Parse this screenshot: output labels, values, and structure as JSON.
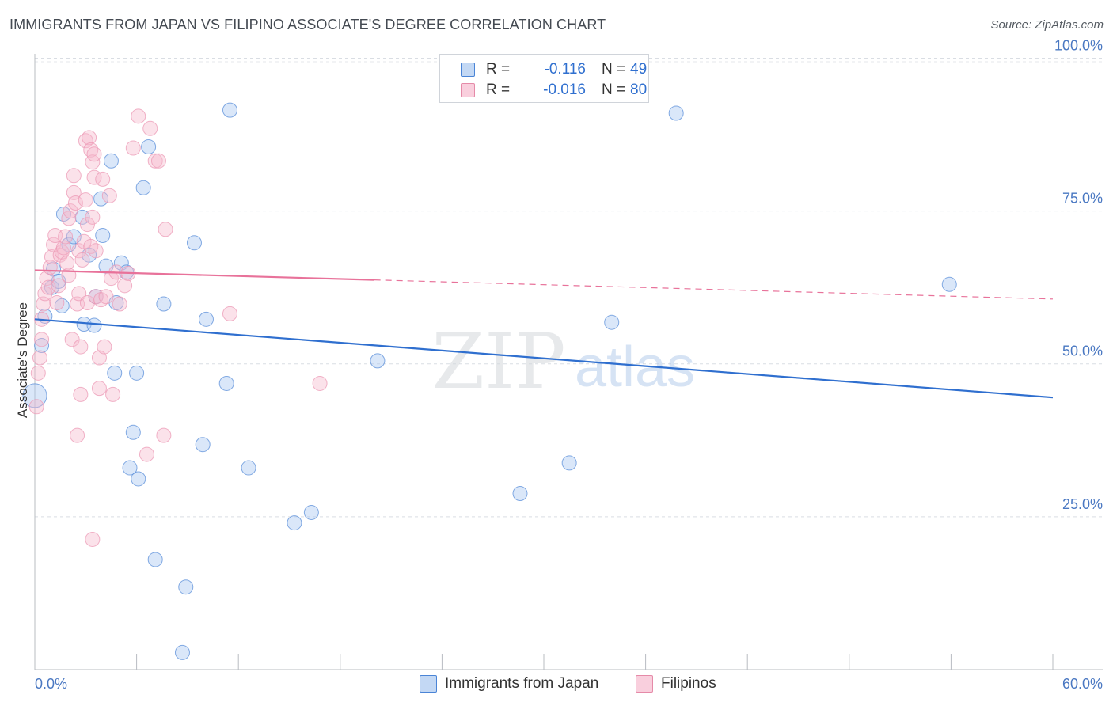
{
  "title": "IMMIGRANTS FROM JAPAN VS FILIPINO ASSOCIATE'S DEGREE CORRELATION CHART",
  "source": "Source: ZipAtlas.com",
  "watermark": {
    "zip": "ZIP",
    "atlas": "atlas"
  },
  "colors": {
    "blue": "#2f6fcf",
    "blue_fill": "#a8c6f0",
    "pink": "#e8729a",
    "pink_fill": "#f6b9cd",
    "grid": "#d9dde3",
    "axis_label": "#4a78c2"
  },
  "legend": {
    "rows": [
      {
        "r_label": "R =",
        "r_value": "-0.116",
        "n_label": "N =",
        "n_value": "49"
      },
      {
        "r_label": "R =",
        "r_value": "-0.016",
        "n_label": "N =",
        "n_value": "80"
      }
    ]
  },
  "bottom_legend": {
    "series_a": "Immigrants from Japan",
    "series_b": "Filipinos"
  },
  "chart_data": {
    "type": "scatter",
    "title": "IMMIGRANTS FROM JAPAN VS FILIPINO ASSOCIATE'S DEGREE CORRELATION CHART",
    "xlabel": "",
    "ylabel": "Associate's Degree",
    "xlim": [
      0,
      60
    ],
    "ylim": [
      0,
      102
    ],
    "x_tick_labels": [
      "0.0%",
      "60.0%"
    ],
    "y_ticks": [
      25,
      50,
      75,
      100
    ],
    "y_tick_labels": [
      "25.0%",
      "50.0%",
      "75.0%",
      "100.0%"
    ],
    "grid": true,
    "series": [
      {
        "name": "Immigrants from Japan",
        "color": "#2f6fcf",
        "r": -0.116,
        "n": 49,
        "trend": {
          "x0": 0,
          "y0": 57.3,
          "x1": 60,
          "y1": 44.5,
          "dashed_from": null
        },
        "points": [
          [
            0.0,
            44.8,
            2
          ],
          [
            0.4,
            53.0,
            1
          ],
          [
            0.6,
            57.8,
            1
          ],
          [
            1.0,
            62.5,
            1
          ],
          [
            1.1,
            65.5,
            1
          ],
          [
            1.4,
            63.5,
            1
          ],
          [
            1.6,
            59.5,
            1
          ],
          [
            2.0,
            69.5,
            1
          ],
          [
            2.3,
            70.8,
            1
          ],
          [
            1.7,
            74.5,
            1
          ],
          [
            2.8,
            74.0,
            1
          ],
          [
            2.9,
            56.5,
            1
          ],
          [
            3.2,
            67.8,
            1
          ],
          [
            3.5,
            56.3,
            1
          ],
          [
            3.6,
            61.0,
            1
          ],
          [
            3.9,
            77.0,
            1
          ],
          [
            4.0,
            71.0,
            1
          ],
          [
            4.2,
            66.0,
            1
          ],
          [
            4.5,
            83.2,
            1
          ],
          [
            4.7,
            48.5,
            1
          ],
          [
            4.8,
            60.0,
            1
          ],
          [
            5.1,
            66.5,
            1
          ],
          [
            5.4,
            65.0,
            1
          ],
          [
            5.8,
            38.8,
            1
          ],
          [
            5.6,
            33.0,
            1
          ],
          [
            6.0,
            48.5,
            1
          ],
          [
            6.1,
            31.2,
            1
          ],
          [
            6.4,
            78.8,
            1
          ],
          [
            6.7,
            85.5,
            1
          ],
          [
            7.1,
            18.0,
            1
          ],
          [
            7.6,
            59.8,
            1
          ],
          [
            8.7,
            2.8,
            1
          ],
          [
            8.9,
            13.5,
            1
          ],
          [
            9.4,
            69.8,
            1
          ],
          [
            9.9,
            36.8,
            1
          ],
          [
            10.1,
            57.3,
            1
          ],
          [
            11.3,
            46.8,
            1
          ],
          [
            11.5,
            91.5,
            1
          ],
          [
            12.6,
            33.0,
            1
          ],
          [
            15.3,
            24.0,
            1
          ],
          [
            16.3,
            25.7,
            1
          ],
          [
            20.2,
            50.5,
            1
          ],
          [
            28.6,
            28.8,
            1
          ],
          [
            31.5,
            33.8,
            1
          ],
          [
            34.0,
            56.8,
            1
          ],
          [
            37.8,
            91.0,
            1
          ],
          [
            53.9,
            63.0,
            1
          ]
        ]
      },
      {
        "name": "Filipinos",
        "color": "#e8729a",
        "r": -0.016,
        "n": 80,
        "trend": {
          "x0": 0,
          "y0": 65.3,
          "x1": 60,
          "y1": 60.6,
          "dashed_from": 20
        },
        "points": [
          [
            0.1,
            43.0,
            1
          ],
          [
            0.2,
            48.5,
            1
          ],
          [
            0.3,
            51.0,
            1
          ],
          [
            0.4,
            54.0,
            1
          ],
          [
            0.4,
            57.3,
            1
          ],
          [
            0.5,
            59.8,
            1
          ],
          [
            0.6,
            61.5,
            1
          ],
          [
            0.7,
            64.0,
            1
          ],
          [
            0.8,
            62.5,
            1
          ],
          [
            0.9,
            65.8,
            1
          ],
          [
            1.0,
            67.5,
            1
          ],
          [
            1.1,
            69.5,
            1
          ],
          [
            1.2,
            71.0,
            1
          ],
          [
            1.3,
            60.0,
            1
          ],
          [
            1.4,
            62.8,
            1
          ],
          [
            1.5,
            67.8,
            1
          ],
          [
            1.6,
            68.3,
            1
          ],
          [
            1.7,
            69.0,
            1
          ],
          [
            1.8,
            70.8,
            1
          ],
          [
            1.9,
            66.5,
            1
          ],
          [
            2.0,
            64.5,
            1
          ],
          [
            2.0,
            73.8,
            1
          ],
          [
            2.1,
            75.0,
            1
          ],
          [
            2.2,
            54.0,
            1
          ],
          [
            2.3,
            78.0,
            1
          ],
          [
            2.3,
            80.8,
            1
          ],
          [
            2.4,
            76.3,
            1
          ],
          [
            2.5,
            38.3,
            1
          ],
          [
            2.5,
            59.8,
            1
          ],
          [
            2.6,
            61.5,
            1
          ],
          [
            2.6,
            68.5,
            1
          ],
          [
            2.7,
            52.8,
            1
          ],
          [
            2.7,
            45.0,
            1
          ],
          [
            2.8,
            67.0,
            1
          ],
          [
            2.9,
            70.0,
            1
          ],
          [
            3.0,
            76.8,
            1
          ],
          [
            3.0,
            86.5,
            1
          ],
          [
            3.1,
            60.0,
            1
          ],
          [
            3.1,
            72.8,
            1
          ],
          [
            3.2,
            87.0,
            1
          ],
          [
            3.3,
            85.0,
            1
          ],
          [
            3.3,
            69.2,
            1
          ],
          [
            3.4,
            74.0,
            1
          ],
          [
            3.4,
            83.0,
            1
          ],
          [
            3.5,
            80.5,
            1
          ],
          [
            3.5,
            84.3,
            1
          ],
          [
            3.6,
            61.0,
            1
          ],
          [
            3.6,
            68.5,
            1
          ],
          [
            3.8,
            51.0,
            1
          ],
          [
            3.8,
            46.0,
            1
          ],
          [
            3.4,
            21.3,
            1
          ],
          [
            3.9,
            60.5,
            1
          ],
          [
            4.0,
            80.2,
            1
          ],
          [
            4.1,
            52.8,
            1
          ],
          [
            4.2,
            61.0,
            1
          ],
          [
            4.4,
            77.5,
            1
          ],
          [
            4.5,
            64.0,
            1
          ],
          [
            4.6,
            45.0,
            1
          ],
          [
            4.8,
            65.0,
            1
          ],
          [
            5.0,
            59.8,
            1
          ],
          [
            5.3,
            62.8,
            1
          ],
          [
            5.5,
            64.8,
            1
          ],
          [
            5.8,
            85.3,
            1
          ],
          [
            6.1,
            90.5,
            1
          ],
          [
            6.6,
            35.2,
            1
          ],
          [
            6.8,
            88.5,
            1
          ],
          [
            7.1,
            83.2,
            1
          ],
          [
            7.3,
            83.2,
            1
          ],
          [
            7.6,
            38.3,
            1
          ],
          [
            7.7,
            72.0,
            1
          ],
          [
            11.5,
            58.2,
            1
          ],
          [
            16.8,
            46.8,
            1
          ]
        ]
      }
    ]
  }
}
